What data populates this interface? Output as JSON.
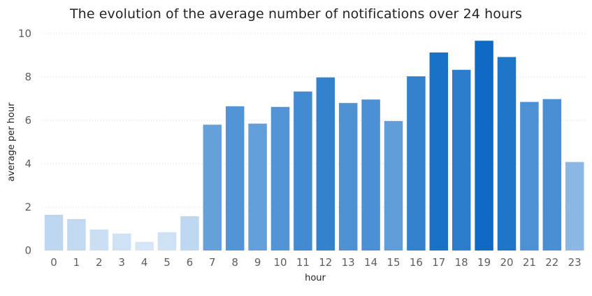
{
  "chart_data": {
    "type": "bar",
    "title": "The evolution of the average number of notifications over 24 hours",
    "xlabel": "hour",
    "ylabel": "average per hour",
    "categories": [
      "0",
      "1",
      "2",
      "3",
      "4",
      "5",
      "6",
      "7",
      "8",
      "9",
      "10",
      "11",
      "12",
      "13",
      "14",
      "15",
      "16",
      "17",
      "18",
      "19",
      "20",
      "21",
      "22",
      "23"
    ],
    "values": [
      1.65,
      1.45,
      0.97,
      0.78,
      0.4,
      0.84,
      1.58,
      5.8,
      6.65,
      5.85,
      6.62,
      7.33,
      7.98,
      6.8,
      6.96,
      5.97,
      8.03,
      9.13,
      8.33,
      9.67,
      8.92,
      6.85,
      6.98,
      4.08
    ],
    "ylim": [
      0,
      10
    ],
    "yticks": [
      0,
      2,
      4,
      6,
      8,
      10
    ],
    "grid": true,
    "color_scale": {
      "low": "#d6e6f7",
      "high": "#0e6ac4"
    }
  }
}
